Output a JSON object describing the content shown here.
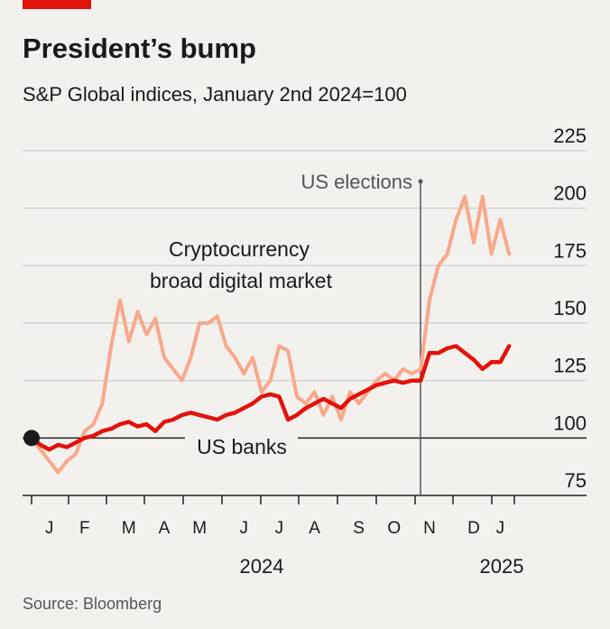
{
  "chart_data": {
    "type": "line",
    "title": "President’s bump",
    "subtitle": "S&P Global indices, January 2nd 2024=100",
    "source": "Source: Bloomberg",
    "categories": [
      null,
      null,
      "J",
      null,
      null,
      null,
      "F",
      null,
      null,
      null,
      null,
      "M",
      null,
      null,
      null,
      "A",
      null,
      null,
      null,
      "M",
      null,
      null,
      null,
      null,
      "J",
      null,
      null,
      null,
      "J",
      null,
      null,
      null,
      "A",
      null,
      null,
      null,
      null,
      "S",
      null,
      null,
      null,
      "O",
      null,
      null,
      null,
      "N",
      null,
      null,
      null,
      null,
      "D",
      null,
      null,
      "J",
      null
    ],
    "year_labels": [
      "2024",
      "2025"
    ],
    "series": [
      {
        "name": "Cryptocurrency broad digital market",
        "label_lines": [
          "Cryptocurrency",
          "broad digital market"
        ],
        "color": "#f7a98a",
        "values": [
          100,
          95,
          90,
          85,
          90,
          93,
          103,
          106,
          115,
          140,
          160,
          142,
          155,
          145,
          152,
          135,
          130,
          125,
          135,
          150,
          150,
          153,
          140,
          135,
          128,
          135,
          120,
          125,
          140,
          138,
          118,
          115,
          120,
          110,
          118,
          108,
          120,
          115,
          120,
          125,
          128,
          125,
          130,
          128,
          130,
          160,
          175,
          180,
          195,
          205,
          185,
          205,
          180,
          195,
          180
        ]
      },
      {
        "name": "US banks",
        "color": "#e3120b",
        "values": [
          100,
          97,
          95,
          97,
          96,
          98,
          100,
          101,
          103,
          104,
          106,
          107,
          105,
          106,
          103,
          107,
          108,
          110,
          111,
          110,
          109,
          108,
          110,
          111,
          113,
          115,
          118,
          119,
          118,
          108,
          110,
          113,
          115,
          117,
          115,
          113,
          117,
          119,
          121,
          123,
          124,
          125,
          124,
          125,
          125,
          137,
          137,
          139,
          140,
          137,
          134,
          130,
          133,
          133,
          140
        ]
      }
    ],
    "annotation": "US elections",
    "ylim": [
      75,
      225
    ],
    "yticks": [
      75,
      100,
      125,
      150,
      175,
      200,
      225
    ],
    "baseline": 100,
    "grid": true
  }
}
